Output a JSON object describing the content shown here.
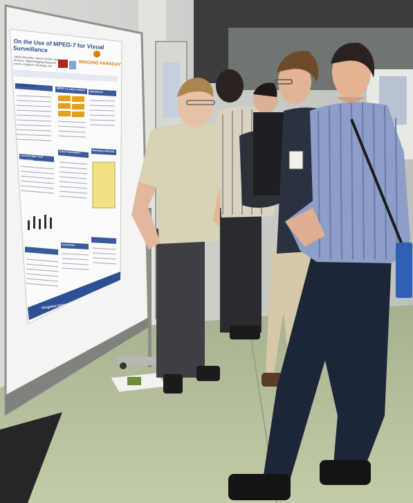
{
  "poster": {
    "title": "On the Use of MPEG-7 for Visual Surveillance",
    "authors": "James Annesley, James Orwell, Jorge Jimenez, Digital Imaging Research Centre, Kingston University, UK",
    "brand": "IMAGING FARADAY",
    "sections": [
      "Introduction",
      "MPEG-7 & other analysis",
      "Operational Requirements",
      "Low and High Level Description",
      "Colour Description",
      "Matching & Results",
      "Conclusion"
    ],
    "footer": "Kingston University London"
  },
  "badge_text": "",
  "colors": {
    "floor": "#b9c4a4",
    "poster_blue": "#2b4a8a",
    "board": "#f4f4f2"
  }
}
